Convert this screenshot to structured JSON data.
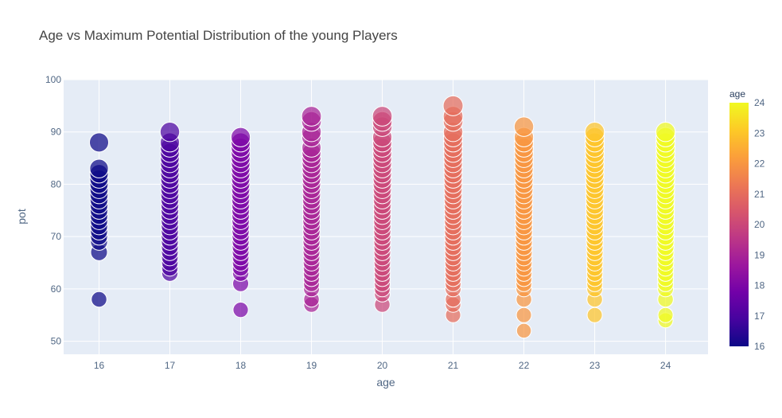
{
  "chart_data": {
    "type": "scatter",
    "title": "Age vs Maximum Potential Distribution of the young Players",
    "xlabel": "age",
    "ylabel": "pot",
    "xlim": [
      15.5,
      24.6
    ],
    "ylim": [
      47.5,
      100
    ],
    "x_ticks": [
      "16",
      "17",
      "18",
      "19",
      "20",
      "21",
      "22",
      "23",
      "24"
    ],
    "y_ticks": [
      "50",
      "60",
      "70",
      "80",
      "90",
      "100"
    ],
    "grid": true,
    "marker_size_encodes": "pot",
    "colorbar": {
      "title": "age",
      "range": [
        16,
        24
      ],
      "ticks": [
        "16",
        "17",
        "18",
        "19",
        "20",
        "21",
        "22",
        "23",
        "24"
      ],
      "colors": [
        "#0d0887",
        "#46039f",
        "#7201a8",
        "#9c179e",
        "#bd3786",
        "#d8576b",
        "#ed7953",
        "#fb9f3a",
        "#fdca26",
        "#f0f921"
      ]
    },
    "points": [
      {
        "age": 16,
        "pot": [
          58,
          67,
          69,
          70,
          71,
          72,
          73,
          74,
          75,
          76,
          77,
          78,
          79,
          80,
          81,
          82,
          83,
          88
        ]
      },
      {
        "age": 17,
        "pot": [
          63,
          64,
          65,
          66,
          67,
          68,
          69,
          70,
          71,
          72,
          73,
          74,
          75,
          76,
          77,
          78,
          79,
          80,
          81,
          82,
          83,
          84,
          85,
          86,
          87,
          88,
          90
        ]
      },
      {
        "age": 18,
        "pot": [
          56,
          61,
          63,
          64,
          65,
          66,
          67,
          68,
          69,
          70,
          71,
          72,
          73,
          74,
          75,
          76,
          77,
          78,
          79,
          80,
          81,
          82,
          83,
          84,
          85,
          86,
          87,
          88,
          89
        ]
      },
      {
        "age": 19,
        "pot": [
          57,
          58,
          60,
          61,
          62,
          63,
          64,
          65,
          66,
          67,
          68,
          69,
          70,
          71,
          72,
          73,
          74,
          75,
          76,
          77,
          78,
          79,
          80,
          81,
          82,
          83,
          84,
          85,
          86,
          87,
          89,
          90,
          92,
          93
        ]
      },
      {
        "age": 20,
        "pot": [
          57,
          59,
          60,
          61,
          62,
          63,
          64,
          65,
          66,
          67,
          68,
          69,
          70,
          71,
          72,
          73,
          74,
          75,
          76,
          77,
          78,
          79,
          80,
          81,
          82,
          83,
          84,
          85,
          86,
          87,
          88,
          89,
          91,
          92,
          93
        ]
      },
      {
        "age": 21,
        "pot": [
          55,
          57,
          58,
          60,
          61,
          62,
          63,
          64,
          65,
          66,
          67,
          68,
          69,
          70,
          71,
          72,
          73,
          74,
          75,
          76,
          77,
          78,
          79,
          80,
          81,
          82,
          83,
          84,
          85,
          86,
          87,
          88,
          89,
          90,
          92,
          93,
          95
        ]
      },
      {
        "age": 22,
        "pot": [
          52,
          55,
          58,
          60,
          61,
          62,
          63,
          64,
          65,
          66,
          67,
          68,
          69,
          70,
          71,
          72,
          73,
          74,
          75,
          76,
          77,
          78,
          79,
          80,
          81,
          82,
          83,
          84,
          85,
          86,
          87,
          88,
          89,
          91
        ]
      },
      {
        "age": 23,
        "pot": [
          55,
          58,
          60,
          61,
          62,
          63,
          64,
          65,
          66,
          67,
          68,
          69,
          70,
          71,
          72,
          73,
          74,
          75,
          76,
          77,
          78,
          79,
          80,
          81,
          82,
          83,
          84,
          85,
          86,
          87,
          88,
          89,
          90
        ]
      },
      {
        "age": 24,
        "pot": [
          54,
          55,
          58,
          60,
          61,
          62,
          63,
          64,
          65,
          66,
          67,
          68,
          69,
          70,
          71,
          72,
          73,
          74,
          75,
          76,
          77,
          78,
          79,
          80,
          81,
          82,
          83,
          84,
          85,
          86,
          87,
          88,
          89,
          90
        ]
      }
    ]
  }
}
